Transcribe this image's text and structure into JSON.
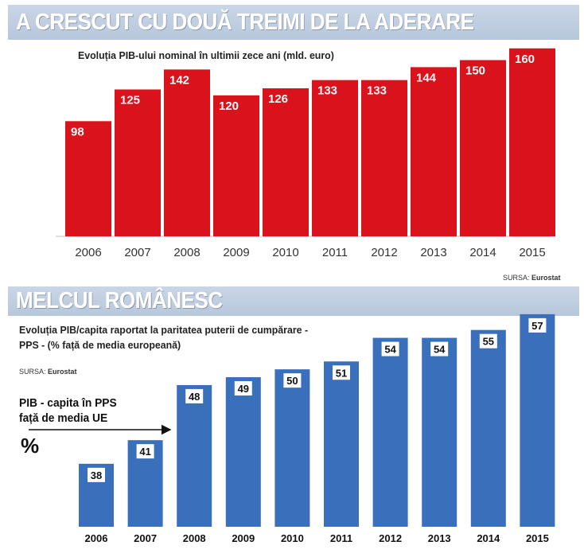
{
  "chart_data": [
    {
      "type": "bar",
      "title": "A CRESCUT CU DOUĂ TREIMI DE LA ADERARE",
      "subtitle": "Evoluția PIB-ului nominal în ultimii zece ani (mld. euro)",
      "categories": [
        "2006",
        "2007",
        "2008",
        "2009",
        "2010",
        "2011",
        "2012",
        "2013",
        "2014",
        "2015"
      ],
      "values": [
        98,
        125,
        142,
        120,
        126,
        133,
        133,
        144,
        150,
        160
      ],
      "ylim": [
        0,
        170
      ],
      "xlabel": "",
      "ylabel": "",
      "source_label": "SURSA:",
      "source_name": "Eurostat",
      "bar_color": "#d9121b"
    },
    {
      "type": "bar",
      "title": "MELCUL ROMÂNESC",
      "subtitle": "Evoluția PIB/capita raportat la paritatea puterii de cumpărare  - PPS - (% față de media europeană)",
      "categories": [
        "2006",
        "2007",
        "2008",
        "2009",
        "2010",
        "2011",
        "2012",
        "2013",
        "2014",
        "2015"
      ],
      "values": [
        38,
        41,
        48,
        49,
        50,
        51,
        54,
        54,
        55,
        57
      ],
      "ylim": [
        30,
        58
      ],
      "xlabel": "",
      "ylabel": "",
      "source_label": "SURSA:",
      "source_name": "Eurostat",
      "annotation": "PIB - capita în PPS față de media UE",
      "annotation_unit": "%",
      "bar_color": "#3a6fbc"
    }
  ]
}
